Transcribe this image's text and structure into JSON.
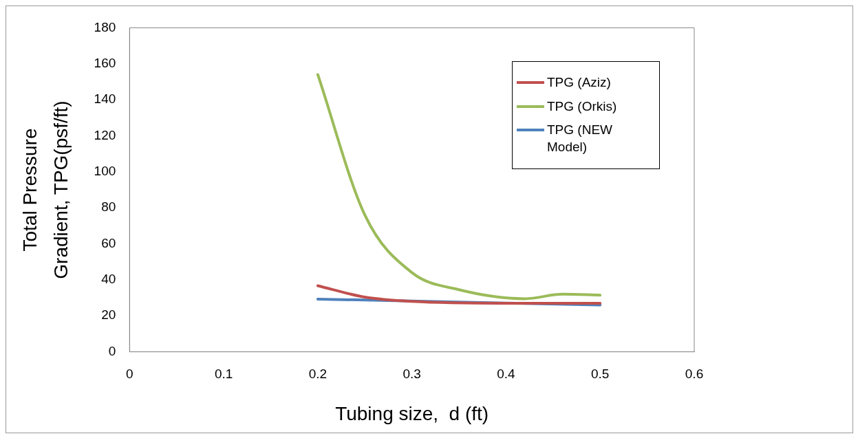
{
  "chart_data": {
    "type": "line",
    "xlabel": "Tubing size,  d (ft)",
    "ylabel": "Total Pressure Gradient, TPG(psf/ft)",
    "xlim": [
      0,
      0.6
    ],
    "xticks": [
      0,
      0.1,
      0.2,
      0.3,
      0.4,
      0.5,
      0.6
    ],
    "ylim": [
      0,
      180
    ],
    "yticks": [
      0,
      20,
      40,
      60,
      80,
      100,
      120,
      140,
      160,
      180
    ],
    "grid": false,
    "legend": "top right",
    "marker": "none",
    "line_style": "solid",
    "series": [
      {
        "name": "TPG (Aziz)",
        "color": "#c0504d",
        "x": [
          0.2,
          0.25,
          0.3,
          0.4,
          0.5
        ],
        "values": [
          36.7,
          30.4,
          28,
          27,
          27
        ]
      },
      {
        "name": "TPG (Orkis)",
        "color": "#9bbb59",
        "x": [
          0.2,
          0.25,
          0.3,
          0.35,
          0.42,
          0.46,
          0.5
        ],
        "values": [
          154,
          76,
          44,
          34.5,
          29.5,
          32,
          31.5
        ]
      },
      {
        "name": "TPG (NEW Model)",
        "color": "#4f81bd",
        "x": [
          0.2,
          0.3,
          0.4,
          0.5
        ],
        "values": [
          29.3,
          28.2,
          27.1,
          26
        ]
      }
    ]
  }
}
